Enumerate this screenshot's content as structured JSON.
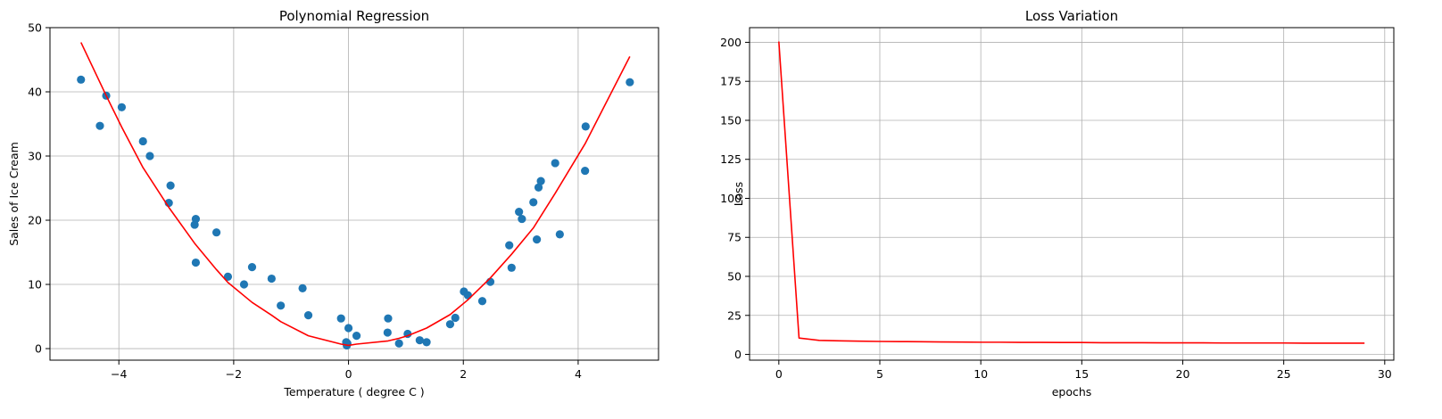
{
  "chart_data": [
    {
      "type": "scatter",
      "title": "Polynomial Regression",
      "xlabel": "Temperature ( degree C )",
      "ylabel": "Sales of Ice Cream",
      "xlim": [
        -5.2,
        5.4
      ],
      "ylim": [
        -1.8,
        50
      ],
      "xticks": [
        -4,
        -2,
        0,
        2,
        4
      ],
      "xtick_labels": [
        "−4",
        "−2",
        "0",
        "2",
        "4"
      ],
      "yticks": [
        0,
        10,
        20,
        30,
        40,
        50
      ],
      "ytick_labels": [
        "0",
        "10",
        "20",
        "30",
        "40",
        "50"
      ],
      "grid": true,
      "colors": {
        "points": "#1f77b4",
        "line": "#ff0000"
      },
      "series": [
        {
          "kind": "scatter",
          "x": [
            -4.66,
            -4.33,
            -4.22,
            -3.95,
            -3.58,
            -3.46,
            -3.1,
            -3.13,
            -2.66,
            -2.68,
            -2.66,
            -2.3,
            -2.1,
            -1.82,
            -1.68,
            -1.34,
            -1.18,
            -0.8,
            -0.7,
            -0.13,
            -0.04,
            -0.03,
            -0.02,
            0.0,
            0.14,
            0.68,
            0.69,
            0.88,
            1.03,
            1.24,
            1.36,
            1.77,
            1.86,
            2.01,
            2.08,
            2.33,
            2.47,
            2.8,
            2.84,
            2.97,
            3.02,
            3.22,
            3.28,
            3.31,
            3.35,
            3.6,
            3.68,
            4.12,
            4.13,
            4.9
          ],
          "y": [
            41.9,
            34.7,
            39.4,
            37.6,
            32.3,
            30.0,
            25.4,
            22.7,
            20.2,
            19.3,
            13.4,
            18.1,
            11.2,
            10.0,
            12.7,
            10.9,
            6.7,
            9.4,
            5.2,
            4.7,
            1.0,
            0.5,
            0.8,
            3.2,
            2.0,
            2.5,
            4.7,
            0.8,
            2.3,
            1.3,
            1.0,
            3.8,
            4.8,
            8.9,
            8.3,
            7.4,
            10.4,
            16.1,
            12.6,
            21.3,
            20.2,
            22.8,
            17.0,
            25.1,
            26.1,
            28.9,
            17.8,
            27.7,
            34.6,
            41.5
          ]
        },
        {
          "kind": "line",
          "x": [
            -4.66,
            -4.22,
            -3.95,
            -3.58,
            -3.13,
            -2.68,
            -2.3,
            -2.1,
            -1.68,
            -1.34,
            -1.18,
            -0.7,
            -0.13,
            0.0,
            0.14,
            0.69,
            0.88,
            1.03,
            1.36,
            1.77,
            2.08,
            2.47,
            2.84,
            3.22,
            3.6,
            4.12,
            4.9
          ],
          "y": [
            47.7,
            39.4,
            34.5,
            28.2,
            22.0,
            16.4,
            12.3,
            10.3,
            7.2,
            5.2,
            4.2,
            2.0,
            0.7,
            0.5,
            0.7,
            1.2,
            1.6,
            2.0,
            3.2,
            5.3,
            7.6,
            11.0,
            14.7,
            18.8,
            24.2,
            31.9,
            45.5
          ]
        }
      ]
    },
    {
      "type": "line",
      "title": "Loss Variation",
      "xlabel": "epochs",
      "ylabel": "Loss",
      "xlim": [
        -1.45,
        30.45
      ],
      "ylim": [
        -3.7,
        209.4
      ],
      "xticks": [
        0,
        5,
        10,
        15,
        20,
        25,
        30
      ],
      "xtick_labels": [
        "0",
        "5",
        "10",
        "15",
        "20",
        "25",
        "30"
      ],
      "yticks": [
        0,
        25,
        50,
        75,
        100,
        125,
        150,
        175,
        200
      ],
      "ytick_labels": [
        "0",
        "25",
        "50",
        "75",
        "100",
        "125",
        "150",
        "175",
        "200"
      ],
      "grid": true,
      "colors": {
        "line": "#ff0000"
      },
      "series": [
        {
          "kind": "line",
          "x": [
            0,
            1,
            2,
            3,
            4,
            5,
            6,
            7,
            8,
            9,
            10,
            11,
            12,
            13,
            14,
            15,
            16,
            17,
            18,
            19,
            20,
            21,
            22,
            23,
            24,
            25,
            26,
            27,
            28,
            29
          ],
          "y": [
            200.5,
            10.5,
            9.0,
            8.7,
            8.5,
            8.3,
            8.2,
            8.1,
            8.0,
            7.9,
            7.8,
            7.8,
            7.7,
            7.7,
            7.6,
            7.6,
            7.5,
            7.5,
            7.5,
            7.4,
            7.4,
            7.4,
            7.3,
            7.3,
            7.3,
            7.3,
            7.2,
            7.2,
            7.2,
            7.2
          ]
        }
      ]
    }
  ]
}
